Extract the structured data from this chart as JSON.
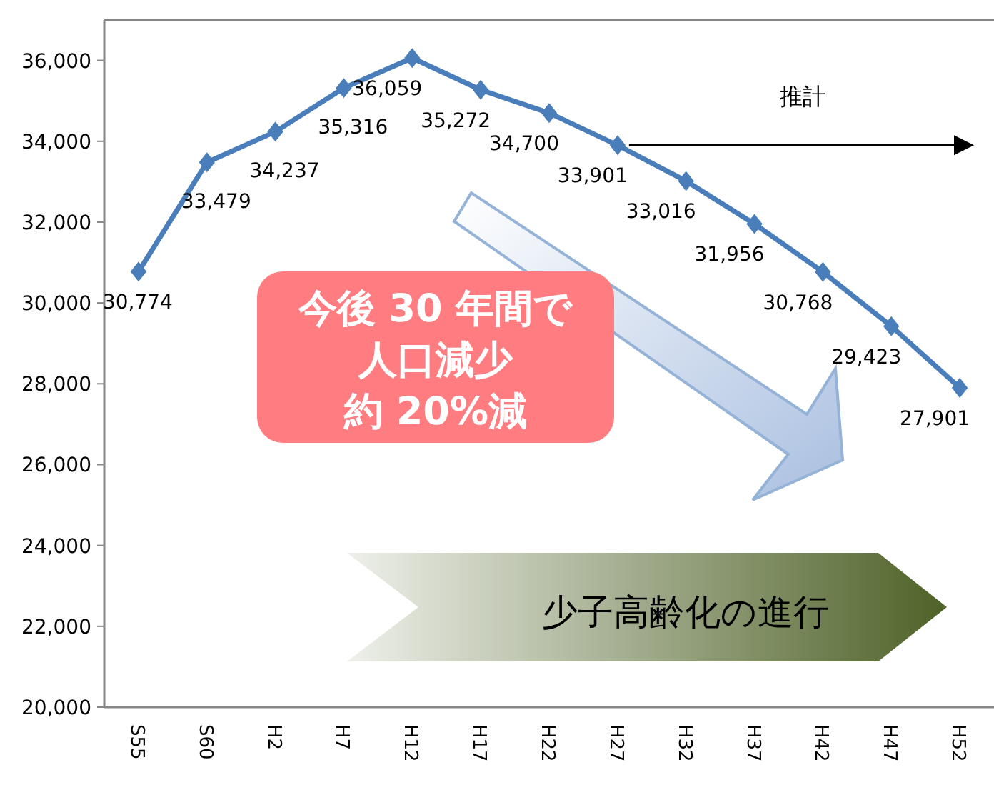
{
  "chart_data": {
    "type": "line",
    "categories": [
      "S55",
      "S60",
      "H2",
      "H7",
      "H12",
      "H17",
      "H22",
      "H27",
      "H32",
      "H37",
      "H42",
      "H47",
      "H52"
    ],
    "series": [
      {
        "color": "#4a7ebb",
        "values": [
          30774,
          33479,
          34237,
          35316,
          36059,
          35272,
          34700,
          33901,
          33016,
          31956,
          30768,
          29423,
          27901
        ]
      }
    ],
    "value_labels": [
      "30,774",
      "33,479",
      "34,237",
      "35,316",
      "36,059",
      "35,272",
      "34,700",
      "33,901",
      "33,016",
      "31,956",
      "30,768",
      "29,423",
      "27,901"
    ],
    "ylim": [
      20000,
      37000
    ],
    "yticks": [
      {
        "value": 20000,
        "label": "20,000"
      },
      {
        "value": 22000,
        "label": "22,000"
      },
      {
        "value": 24000,
        "label": "24,000"
      },
      {
        "value": 26000,
        "label": "26,000"
      },
      {
        "value": 28000,
        "label": "28,000"
      },
      {
        "value": 30000,
        "label": "30,000"
      },
      {
        "value": 32000,
        "label": "32,000"
      },
      {
        "value": 34000,
        "label": "34,000"
      },
      {
        "value": 36000,
        "label": "36,000"
      }
    ],
    "marker": "diamond",
    "line_style": "solid",
    "grid": false,
    "legend": false,
    "annotations": [
      "推計",
      "今後 30 年間で",
      "人口減少",
      "約 20%減",
      "少子高齢化の進行"
    ]
  }
}
